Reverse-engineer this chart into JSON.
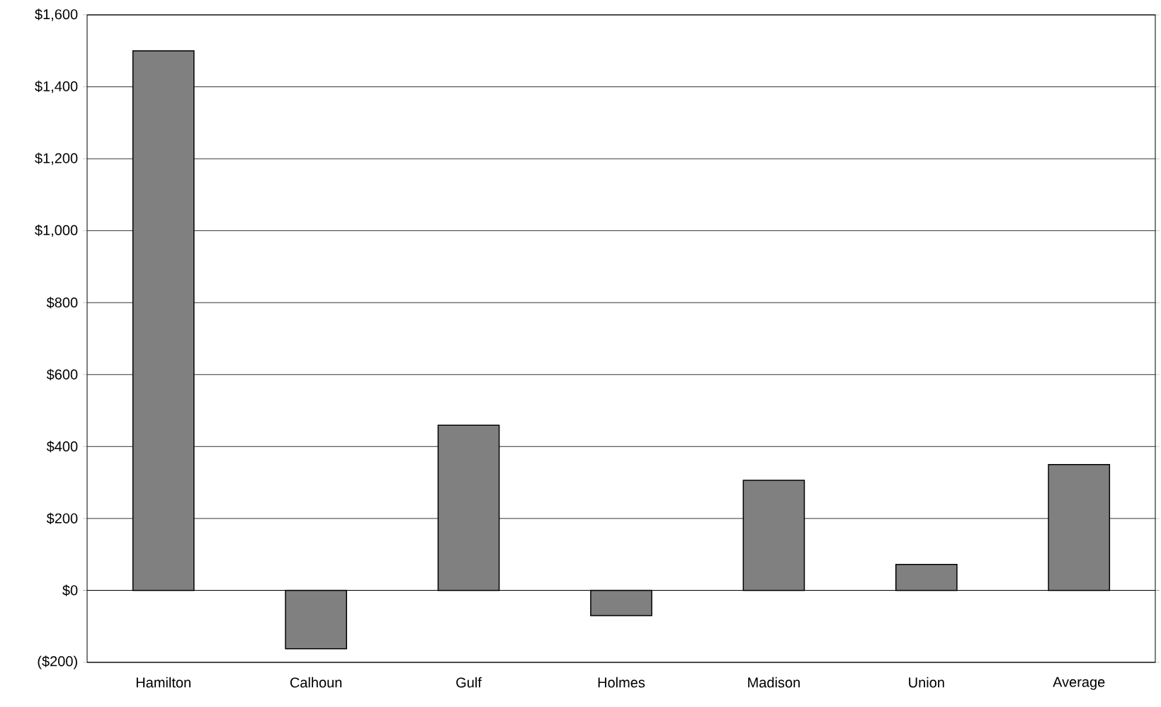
{
  "chart_data": {
    "type": "bar",
    "categories": [
      "Hamilton",
      "Calhoun",
      "Gulf",
      "Holmes",
      "Madison",
      "Union",
      "Average"
    ],
    "values": [
      1500,
      -162,
      459,
      -70,
      306,
      72,
      350
    ],
    "color": "#808080",
    "ylim": [
      -200,
      1600
    ],
    "yticks": [
      {
        "value": -200,
        "label": "($200)"
      },
      {
        "value": 0,
        "label": "$0"
      },
      {
        "value": 200,
        "label": "$200"
      },
      {
        "value": 400,
        "label": "$400"
      },
      {
        "value": 600,
        "label": "$600"
      },
      {
        "value": 800,
        "label": "$800"
      },
      {
        "value": 1000,
        "label": "$1,000"
      },
      {
        "value": 1200,
        "label": "$1,200"
      },
      {
        "value": 1400,
        "label": "$1,400"
      },
      {
        "value": 1600,
        "label": "$1,600"
      }
    ],
    "grid": "y"
  }
}
